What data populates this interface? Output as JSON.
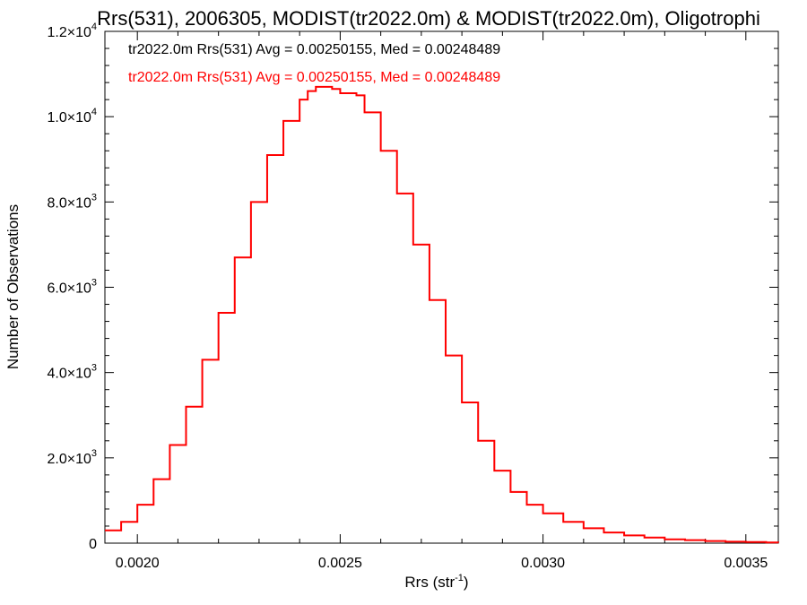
{
  "chart_data": {
    "type": "line",
    "title": "Rrs(531), 2006305, MODIST(tr2022.0m) & MODIST(tr2022.0m), Oligotrophi",
    "xlabel_main": "Rrs (str",
    "xlabel_sup": "-1",
    "xlabel_close": ")",
    "ylabel": "Number of Observations",
    "xlim": [
      0.00192,
      0.00358
    ],
    "ylim": [
      0,
      12000
    ],
    "x_ticks": [
      {
        "value": 0.002,
        "label": "0.0020"
      },
      {
        "value": 0.0025,
        "label": "0.0025"
      },
      {
        "value": 0.003,
        "label": "0.0030"
      },
      {
        "value": 0.0035,
        "label": "0.0035"
      }
    ],
    "y_ticks": [
      {
        "value": 0,
        "mant": "0",
        "exp": ""
      },
      {
        "value": 2000,
        "mant": "2.0×10",
        "exp": "3"
      },
      {
        "value": 4000,
        "mant": "4.0×10",
        "exp": "3"
      },
      {
        "value": 6000,
        "mant": "6.0×10",
        "exp": "3"
      },
      {
        "value": 8000,
        "mant": "8.0×10",
        "exp": "3"
      },
      {
        "value": 10000,
        "mant": "1.0×10",
        "exp": "4"
      },
      {
        "value": 12000,
        "mant": "1.2×10",
        "exp": "4"
      }
    ],
    "legend": [
      {
        "text": "tr2022.0m Rrs(531) Avg = 0.00250155, Med = 0.00248489",
        "color": "#000000"
      },
      {
        "text": "tr2022.0m Rrs(531) Avg = 0.00250155, Med = 0.00248489",
        "color": "#ff0000"
      }
    ],
    "series": [
      {
        "color": "#ff0000",
        "x": [
          0.00192,
          0.00196,
          0.002,
          0.00204,
          0.00208,
          0.00212,
          0.00216,
          0.0022,
          0.00224,
          0.00228,
          0.00232,
          0.00236,
          0.0024,
          0.00242,
          0.00244,
          0.00246,
          0.00248,
          0.0025,
          0.00252,
          0.00254,
          0.00256,
          0.0026,
          0.00264,
          0.00268,
          0.00272,
          0.00276,
          0.0028,
          0.00284,
          0.00288,
          0.00292,
          0.00296,
          0.003,
          0.00305,
          0.0031,
          0.00315,
          0.0032,
          0.00325,
          0.0033,
          0.00335,
          0.0034,
          0.00345,
          0.0035,
          0.00355,
          0.00358
        ],
        "y": [
          300,
          500,
          900,
          1500,
          2300,
          3200,
          4300,
          5400,
          6700,
          8000,
          9100,
          9900,
          10400,
          10600,
          10700,
          10700,
          10650,
          10550,
          10550,
          10500,
          10100,
          9200,
          8200,
          7000,
          5700,
          4400,
          3300,
          2400,
          1700,
          1200,
          900,
          700,
          500,
          350,
          250,
          180,
          130,
          90,
          70,
          50,
          35,
          25,
          15,
          10
        ]
      }
    ]
  }
}
